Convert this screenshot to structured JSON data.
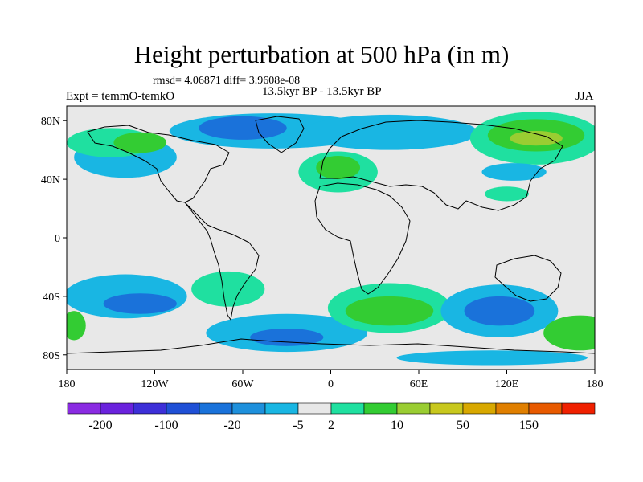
{
  "title": "Height perturbation at 500 hPa (in m)",
  "stats_line": "rmsd= 4.06871 diff= 3.9608e-08",
  "period_label": "13.5kyr BP - 13.5kyr BP",
  "experiment_label": "Expt = temmO-temkO",
  "season_label": "JJA",
  "map": {
    "projection": "cylindrical-equidistant",
    "lon_range": [
      -180,
      180
    ],
    "lat_range": [
      -90,
      90
    ],
    "background_color": "#e8e8e8",
    "lat_ticks": [
      {
        "value": 80,
        "label": "80N"
      },
      {
        "value": 40,
        "label": "40N"
      },
      {
        "value": 0,
        "label": "0"
      },
      {
        "value": -40,
        "label": "40S"
      },
      {
        "value": -80,
        "label": "80S"
      }
    ],
    "lon_ticks": [
      {
        "value": -180,
        "label": "180"
      },
      {
        "value": -120,
        "label": "120W"
      },
      {
        "value": -60,
        "label": "60W"
      },
      {
        "value": 0,
        "label": "0"
      },
      {
        "value": 60,
        "label": "60E"
      },
      {
        "value": 120,
        "label": "120E"
      },
      {
        "value": 180,
        "label": "180"
      }
    ]
  },
  "colorbar": {
    "colors": [
      "#8a2be2",
      "#6a22dd",
      "#3d2fd8",
      "#1f50d6",
      "#1a72da",
      "#1e90dc",
      "#19b6e3",
      "#e8e8e8",
      "#1fe0a0",
      "#33cc33",
      "#9acd32",
      "#c8c81e",
      "#d8a800",
      "#e07f00",
      "#e85a00",
      "#f02000"
    ],
    "labels": [
      {
        "after_box": 1,
        "text": "-200"
      },
      {
        "after_box": 3,
        "text": "-100"
      },
      {
        "after_box": 5,
        "text": "-20"
      },
      {
        "after_box": 7,
        "text": "-5"
      },
      {
        "after_box": 8,
        "text": "2"
      },
      {
        "after_box": 10,
        "text": "10"
      },
      {
        "after_box": 12,
        "text": "50"
      },
      {
        "after_box": 14,
        "text": "150"
      }
    ]
  },
  "field_regions": [
    {
      "level": "-5",
      "color": "#19b6e3",
      "lon": -140,
      "lat": 55,
      "rlon": 35,
      "rlat": 14
    },
    {
      "level": "2",
      "color": "#1fe0a0",
      "lon": -150,
      "lat": 65,
      "rlon": 30,
      "rlat": 10
    },
    {
      "level": "10",
      "color": "#33cc33",
      "lon": -130,
      "lat": 65,
      "rlon": 18,
      "rlat": 7
    },
    {
      "level": "-5",
      "color": "#19b6e3",
      "lon": -40,
      "lat": 73,
      "rlon": 70,
      "rlat": 12
    },
    {
      "level": "-20",
      "color": "#1a72da",
      "lon": -60,
      "lat": 75,
      "rlon": 30,
      "rlat": 8
    },
    {
      "level": "-5",
      "color": "#19b6e3",
      "lon": 40,
      "lat": 72,
      "rlon": 60,
      "rlat": 12
    },
    {
      "level": "2",
      "color": "#1fe0a0",
      "lon": 5,
      "lat": 45,
      "rlon": 27,
      "rlat": 14
    },
    {
      "level": "10",
      "color": "#33cc33",
      "lon": 5,
      "lat": 48,
      "rlon": 15,
      "rlat": 8
    },
    {
      "level": "2",
      "color": "#1fe0a0",
      "lon": 140,
      "lat": 68,
      "rlon": 45,
      "rlat": 18
    },
    {
      "level": "10",
      "color": "#33cc33",
      "lon": 140,
      "lat": 70,
      "rlon": 33,
      "rlat": 11
    },
    {
      "level": "20",
      "color": "#9acd32",
      "lon": 140,
      "lat": 68,
      "rlon": 18,
      "rlat": 5
    },
    {
      "level": "-5",
      "color": "#19b6e3",
      "lon": 125,
      "lat": 45,
      "rlon": 22,
      "rlat": 6
    },
    {
      "level": "2",
      "color": "#1fe0a0",
      "lon": 120,
      "lat": 30,
      "rlon": 15,
      "rlat": 5
    },
    {
      "level": "-5",
      "color": "#19b6e3",
      "lon": -140,
      "lat": -40,
      "rlon": 42,
      "rlat": 15
    },
    {
      "level": "-20",
      "color": "#1a72da",
      "lon": -130,
      "lat": -45,
      "rlon": 25,
      "rlat": 7
    },
    {
      "level": "-5",
      "color": "#19b6e3",
      "lon": -30,
      "lat": -65,
      "rlon": 55,
      "rlat": 13
    },
    {
      "level": "-20",
      "color": "#1a72da",
      "lon": -30,
      "lat": -68,
      "rlon": 25,
      "rlat": 6
    },
    {
      "level": "2",
      "color": "#1fe0a0",
      "lon": -70,
      "lat": -35,
      "rlon": 25,
      "rlat": 12
    },
    {
      "level": "2",
      "color": "#1fe0a0",
      "lon": 40,
      "lat": -48,
      "rlon": 42,
      "rlat": 17
    },
    {
      "level": "10",
      "color": "#33cc33",
      "lon": 40,
      "lat": -50,
      "rlon": 30,
      "rlat": 10
    },
    {
      "level": "-5",
      "color": "#19b6e3",
      "lon": 115,
      "lat": -50,
      "rlon": 40,
      "rlat": 18
    },
    {
      "level": "-20",
      "color": "#1a72da",
      "lon": 115,
      "lat": -50,
      "rlon": 24,
      "rlat": 10
    },
    {
      "level": "10",
      "color": "#33cc33",
      "lon": 170,
      "lat": -65,
      "rlon": 25,
      "rlat": 12
    },
    {
      "level": "10",
      "color": "#33cc33",
      "lon": -175,
      "lat": -60,
      "rlon": 8,
      "rlat": 10
    },
    {
      "level": "-5",
      "color": "#19b6e3",
      "lon": 110,
      "lat": -82,
      "rlon": 65,
      "rlat": 5
    }
  ]
}
